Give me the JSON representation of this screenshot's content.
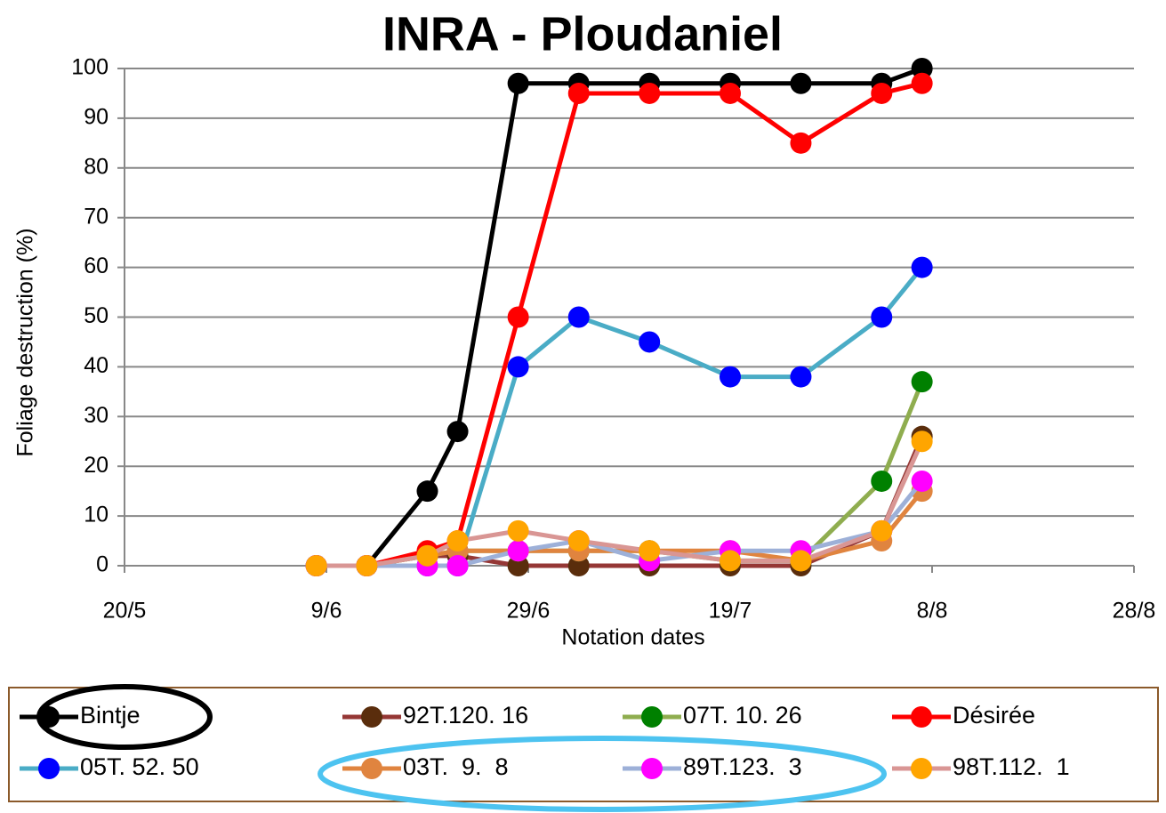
{
  "chart_data": {
    "type": "line",
    "title": "INRA - Ploudaniel",
    "x_label": "Notation dates",
    "y_label": "Foliage destruction (%)",
    "x": [
      "8/6",
      "13/6",
      "19/6",
      "22/6",
      "28/6",
      "4/7",
      "11/7",
      "19/7",
      "26/7",
      "3/8",
      "7/8"
    ],
    "xlim": [
      "20/5",
      "28/8"
    ],
    "xticks": [
      "20/5",
      "9/6",
      "29/6",
      "19/7",
      "8/8",
      "28/8"
    ],
    "ylim": [
      0,
      100
    ],
    "yticks": [
      0,
      10,
      20,
      30,
      40,
      50,
      60,
      70,
      80,
      90,
      100
    ],
    "grid": true,
    "series": [
      {
        "name": "Bintje",
        "color": "#000000",
        "marker_color": "#000000",
        "values": [
          0,
          0,
          15,
          27,
          97,
          97,
          97,
          97,
          97,
          97,
          100
        ]
      },
      {
        "name": "92T.120. 16",
        "color": "#953735",
        "marker_color": "#5a2d0c",
        "values": [
          0,
          0,
          2,
          2,
          0,
          0,
          0,
          0,
          0,
          7,
          26
        ]
      },
      {
        "name": "07T. 10. 26",
        "color": "#8fad4f",
        "marker_color": "#008000",
        "values": [
          0,
          0,
          2,
          3,
          3,
          3,
          3,
          1,
          1,
          17,
          37
        ]
      },
      {
        "name": "Désirée",
        "color": "#ff0000",
        "marker_color": "#ff0000",
        "values": [
          0,
          0,
          3,
          5,
          50,
          95,
          95,
          95,
          85,
          95,
          97
        ]
      },
      {
        "name": "05T. 52. 50",
        "color": "#4aacc6",
        "marker_color": "#0000ff",
        "values": [
          0,
          0,
          0,
          0,
          40,
          50,
          45,
          38,
          38,
          50,
          60
        ]
      },
      {
        "name": "03T.  9.  8",
        "color": "#e0843f",
        "marker_color": "#e0843f",
        "values": [
          0,
          0,
          2,
          3,
          3,
          3,
          3,
          3,
          1,
          5,
          15
        ]
      },
      {
        "name": "89T.123.  3",
        "color": "#9db0d8",
        "marker_color": "#ff00ff",
        "values": [
          0,
          0,
          0,
          0,
          3,
          5,
          1,
          3,
          3,
          7,
          17
        ]
      },
      {
        "name": "98T.112.  1",
        "color": "#d99694",
        "marker_color": "#ffa500",
        "values": [
          0,
          0,
          2,
          5,
          7,
          5,
          3,
          1,
          1,
          7,
          25
        ]
      }
    ]
  }
}
